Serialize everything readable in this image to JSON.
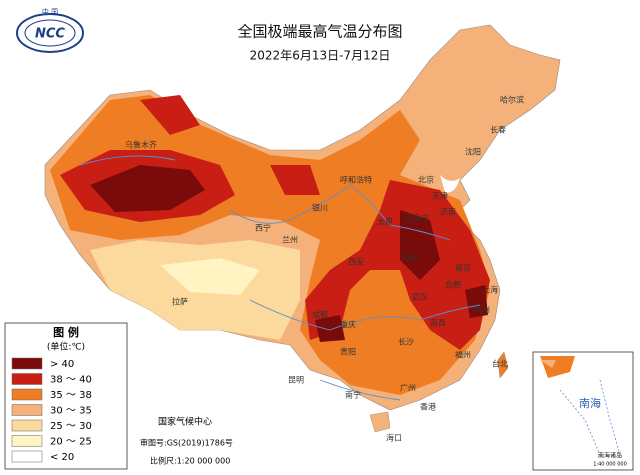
{
  "logo": {
    "text": "NCC",
    "label": "中 国"
  },
  "title": "全国极端最高气温分布图",
  "subtitle": "2022年6月13日-7月12日",
  "legend": {
    "title": "图 例",
    "unit": "(单位:℃)",
    "items": [
      {
        "label": "> 40",
        "color": "#7a0b0b"
      },
      {
        "label": "38 ～ 40",
        "color": "#c81e14"
      },
      {
        "label": "35 ～ 38",
        "color": "#ee7d24"
      },
      {
        "label": "30 ～ 35",
        "color": "#f4b27a"
      },
      {
        "label": "25 ～ 30",
        "color": "#fcd99c"
      },
      {
        "label": "20 ～ 25",
        "color": "#fff4c2"
      },
      {
        "label": "< 20",
        "color": "#ffffff"
      }
    ]
  },
  "footer": {
    "agency": "国家气候中心",
    "approval": "审图号:GS(2019)1786号",
    "scale": "比例尺:1:20 000 000"
  },
  "inset": {
    "label": "南海",
    "islands": "南海诸岛",
    "scale": "1:40 000 000"
  },
  "cities": [
    "乌鲁木齐",
    "西宁",
    "拉萨",
    "成都",
    "重庆",
    "郑州",
    "石家庄",
    "太原",
    "济南",
    "武汉",
    "长沙",
    "南昌",
    "合肥",
    "杭州",
    "上海",
    "南京",
    "北京",
    "天津",
    "哈尔滨",
    "长春",
    "沈阳",
    "呼和浩特",
    "银川",
    "兰州",
    "西安",
    "贵阳",
    "昆明",
    "南宁",
    "广州",
    "福州",
    "台北",
    "海口",
    "香港"
  ]
}
